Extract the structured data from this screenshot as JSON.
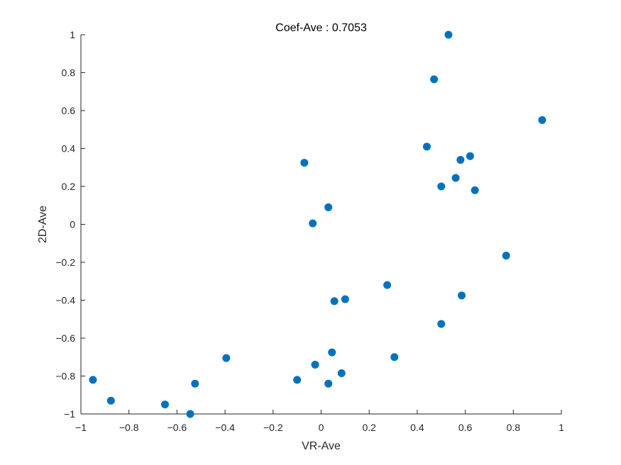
{
  "chart_data": {
    "type": "scatter",
    "title": "Coef-Ave : 0.7053",
    "xlabel": "VR-Ave",
    "ylabel": "2D-Ave",
    "xlim": [
      -1,
      1
    ],
    "ylim": [
      -1,
      1
    ],
    "xticks": [
      -1,
      -0.8,
      -0.6,
      -0.4,
      -0.2,
      0,
      0.2,
      0.4,
      0.6,
      0.8,
      1
    ],
    "yticks": [
      -1,
      -0.8,
      -0.6,
      -0.4,
      -0.2,
      0,
      0.2,
      0.4,
      0.6,
      0.8,
      1
    ],
    "xtick_labels": [
      "−1",
      "−0.8",
      "−0.6",
      "−0.4",
      "−0.2",
      "0",
      "0.2",
      "0.4",
      "0.6",
      "0.8",
      "1"
    ],
    "ytick_labels": [
      "−1",
      "−0.8",
      "−0.6",
      "−0.4",
      "−0.2",
      "0",
      "0.2",
      "0.4",
      "0.6",
      "0.8",
      "1"
    ],
    "grid": false,
    "marker_color": "#0072BD",
    "points": [
      {
        "x": 0.53,
        "y": 1.0
      },
      {
        "x": 0.47,
        "y": 0.765
      },
      {
        "x": 0.92,
        "y": 0.55
      },
      {
        "x": 0.44,
        "y": 0.41
      },
      {
        "x": 0.62,
        "y": 0.36
      },
      {
        "x": 0.58,
        "y": 0.34
      },
      {
        "x": 0.56,
        "y": 0.245
      },
      {
        "x": 0.5,
        "y": 0.2
      },
      {
        "x": 0.64,
        "y": 0.18
      },
      {
        "x": -0.07,
        "y": 0.325
      },
      {
        "x": 0.03,
        "y": 0.09
      },
      {
        "x": -0.035,
        "y": 0.005
      },
      {
        "x": 0.77,
        "y": -0.165
      },
      {
        "x": 0.275,
        "y": -0.32
      },
      {
        "x": 0.585,
        "y": -0.375
      },
      {
        "x": 0.055,
        "y": -0.405
      },
      {
        "x": 0.1,
        "y": -0.395
      },
      {
        "x": 0.5,
        "y": -0.525
      },
      {
        "x": 0.045,
        "y": -0.675
      },
      {
        "x": 0.305,
        "y": -0.7
      },
      {
        "x": -0.395,
        "y": -0.705
      },
      {
        "x": -0.025,
        "y": -0.74
      },
      {
        "x": 0.085,
        "y": -0.785
      },
      {
        "x": -0.1,
        "y": -0.82
      },
      {
        "x": 0.03,
        "y": -0.84
      },
      {
        "x": -0.525,
        "y": -0.84
      },
      {
        "x": -0.95,
        "y": -0.82
      },
      {
        "x": -0.875,
        "y": -0.93
      },
      {
        "x": -0.65,
        "y": -0.95
      },
      {
        "x": -0.545,
        "y": -1.0
      }
    ]
  }
}
